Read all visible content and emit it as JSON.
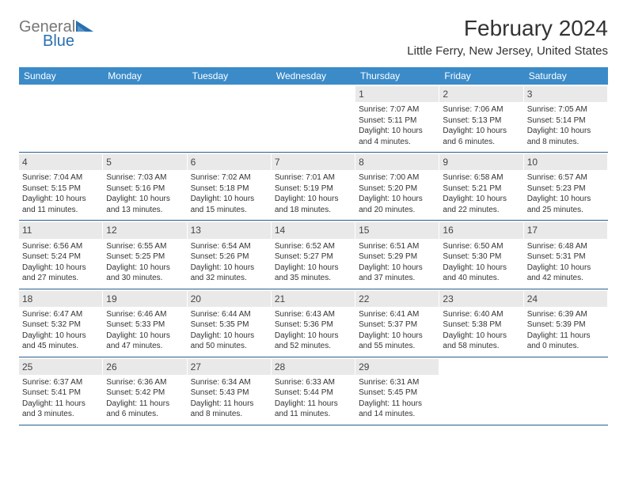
{
  "logo": {
    "text_general": "General",
    "text_blue": "Blue",
    "general_color": "#777777",
    "blue_color": "#2a6fae",
    "triangle_colors": [
      "#2a6fae",
      "#5a96c9"
    ]
  },
  "title": "February 2024",
  "location": "Little Ferry, New Jersey, United States",
  "header_bg": "#3b8bc9",
  "daynum_bg": "#e9e9e9",
  "border_color": "#2a5f8a",
  "text_color": "#333333",
  "days_of_week": [
    "Sunday",
    "Monday",
    "Tuesday",
    "Wednesday",
    "Thursday",
    "Friday",
    "Saturday"
  ],
  "weeks": [
    [
      {
        "blank": true
      },
      {
        "blank": true
      },
      {
        "blank": true
      },
      {
        "blank": true
      },
      {
        "num": "1",
        "sunrise": "Sunrise: 7:07 AM",
        "sunset": "Sunset: 5:11 PM",
        "daylight1": "Daylight: 10 hours",
        "daylight2": "and 4 minutes."
      },
      {
        "num": "2",
        "sunrise": "Sunrise: 7:06 AM",
        "sunset": "Sunset: 5:13 PM",
        "daylight1": "Daylight: 10 hours",
        "daylight2": "and 6 minutes."
      },
      {
        "num": "3",
        "sunrise": "Sunrise: 7:05 AM",
        "sunset": "Sunset: 5:14 PM",
        "daylight1": "Daylight: 10 hours",
        "daylight2": "and 8 minutes."
      }
    ],
    [
      {
        "num": "4",
        "sunrise": "Sunrise: 7:04 AM",
        "sunset": "Sunset: 5:15 PM",
        "daylight1": "Daylight: 10 hours",
        "daylight2": "and 11 minutes."
      },
      {
        "num": "5",
        "sunrise": "Sunrise: 7:03 AM",
        "sunset": "Sunset: 5:16 PM",
        "daylight1": "Daylight: 10 hours",
        "daylight2": "and 13 minutes."
      },
      {
        "num": "6",
        "sunrise": "Sunrise: 7:02 AM",
        "sunset": "Sunset: 5:18 PM",
        "daylight1": "Daylight: 10 hours",
        "daylight2": "and 15 minutes."
      },
      {
        "num": "7",
        "sunrise": "Sunrise: 7:01 AM",
        "sunset": "Sunset: 5:19 PM",
        "daylight1": "Daylight: 10 hours",
        "daylight2": "and 18 minutes."
      },
      {
        "num": "8",
        "sunrise": "Sunrise: 7:00 AM",
        "sunset": "Sunset: 5:20 PM",
        "daylight1": "Daylight: 10 hours",
        "daylight2": "and 20 minutes."
      },
      {
        "num": "9",
        "sunrise": "Sunrise: 6:58 AM",
        "sunset": "Sunset: 5:21 PM",
        "daylight1": "Daylight: 10 hours",
        "daylight2": "and 22 minutes."
      },
      {
        "num": "10",
        "sunrise": "Sunrise: 6:57 AM",
        "sunset": "Sunset: 5:23 PM",
        "daylight1": "Daylight: 10 hours",
        "daylight2": "and 25 minutes."
      }
    ],
    [
      {
        "num": "11",
        "sunrise": "Sunrise: 6:56 AM",
        "sunset": "Sunset: 5:24 PM",
        "daylight1": "Daylight: 10 hours",
        "daylight2": "and 27 minutes."
      },
      {
        "num": "12",
        "sunrise": "Sunrise: 6:55 AM",
        "sunset": "Sunset: 5:25 PM",
        "daylight1": "Daylight: 10 hours",
        "daylight2": "and 30 minutes."
      },
      {
        "num": "13",
        "sunrise": "Sunrise: 6:54 AM",
        "sunset": "Sunset: 5:26 PM",
        "daylight1": "Daylight: 10 hours",
        "daylight2": "and 32 minutes."
      },
      {
        "num": "14",
        "sunrise": "Sunrise: 6:52 AM",
        "sunset": "Sunset: 5:27 PM",
        "daylight1": "Daylight: 10 hours",
        "daylight2": "and 35 minutes."
      },
      {
        "num": "15",
        "sunrise": "Sunrise: 6:51 AM",
        "sunset": "Sunset: 5:29 PM",
        "daylight1": "Daylight: 10 hours",
        "daylight2": "and 37 minutes."
      },
      {
        "num": "16",
        "sunrise": "Sunrise: 6:50 AM",
        "sunset": "Sunset: 5:30 PM",
        "daylight1": "Daylight: 10 hours",
        "daylight2": "and 40 minutes."
      },
      {
        "num": "17",
        "sunrise": "Sunrise: 6:48 AM",
        "sunset": "Sunset: 5:31 PM",
        "daylight1": "Daylight: 10 hours",
        "daylight2": "and 42 minutes."
      }
    ],
    [
      {
        "num": "18",
        "sunrise": "Sunrise: 6:47 AM",
        "sunset": "Sunset: 5:32 PM",
        "daylight1": "Daylight: 10 hours",
        "daylight2": "and 45 minutes."
      },
      {
        "num": "19",
        "sunrise": "Sunrise: 6:46 AM",
        "sunset": "Sunset: 5:33 PM",
        "daylight1": "Daylight: 10 hours",
        "daylight2": "and 47 minutes."
      },
      {
        "num": "20",
        "sunrise": "Sunrise: 6:44 AM",
        "sunset": "Sunset: 5:35 PM",
        "daylight1": "Daylight: 10 hours",
        "daylight2": "and 50 minutes."
      },
      {
        "num": "21",
        "sunrise": "Sunrise: 6:43 AM",
        "sunset": "Sunset: 5:36 PM",
        "daylight1": "Daylight: 10 hours",
        "daylight2": "and 52 minutes."
      },
      {
        "num": "22",
        "sunrise": "Sunrise: 6:41 AM",
        "sunset": "Sunset: 5:37 PM",
        "daylight1": "Daylight: 10 hours",
        "daylight2": "and 55 minutes."
      },
      {
        "num": "23",
        "sunrise": "Sunrise: 6:40 AM",
        "sunset": "Sunset: 5:38 PM",
        "daylight1": "Daylight: 10 hours",
        "daylight2": "and 58 minutes."
      },
      {
        "num": "24",
        "sunrise": "Sunrise: 6:39 AM",
        "sunset": "Sunset: 5:39 PM",
        "daylight1": "Daylight: 11 hours",
        "daylight2": "and 0 minutes."
      }
    ],
    [
      {
        "num": "25",
        "sunrise": "Sunrise: 6:37 AM",
        "sunset": "Sunset: 5:41 PM",
        "daylight1": "Daylight: 11 hours",
        "daylight2": "and 3 minutes."
      },
      {
        "num": "26",
        "sunrise": "Sunrise: 6:36 AM",
        "sunset": "Sunset: 5:42 PM",
        "daylight1": "Daylight: 11 hours",
        "daylight2": "and 6 minutes."
      },
      {
        "num": "27",
        "sunrise": "Sunrise: 6:34 AM",
        "sunset": "Sunset: 5:43 PM",
        "daylight1": "Daylight: 11 hours",
        "daylight2": "and 8 minutes."
      },
      {
        "num": "28",
        "sunrise": "Sunrise: 6:33 AM",
        "sunset": "Sunset: 5:44 PM",
        "daylight1": "Daylight: 11 hours",
        "daylight2": "and 11 minutes."
      },
      {
        "num": "29",
        "sunrise": "Sunrise: 6:31 AM",
        "sunset": "Sunset: 5:45 PM",
        "daylight1": "Daylight: 11 hours",
        "daylight2": "and 14 minutes."
      },
      {
        "blank": true
      },
      {
        "blank": true
      }
    ]
  ]
}
